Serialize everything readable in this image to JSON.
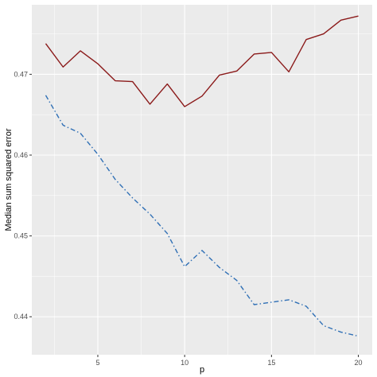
{
  "chart_data": {
    "type": "line",
    "title": "",
    "xlabel": "p",
    "ylabel": "Median sum squared error",
    "xlim": [
      1.2,
      20.8
    ],
    "ylim": [
      0.4353,
      0.4786
    ],
    "x_ticks": [
      5,
      10,
      15,
      20
    ],
    "x_tick_labels": [
      "5",
      "10",
      "15",
      "20"
    ],
    "y_ticks": [
      0.44,
      0.45,
      0.46,
      0.47
    ],
    "y_tick_labels": [
      "0.44",
      "0.45",
      "0.46",
      "0.47"
    ],
    "grid": true,
    "legend": "none",
    "x": [
      2,
      3,
      4,
      5,
      6,
      7,
      8,
      9,
      10,
      11,
      12,
      13,
      14,
      15,
      16,
      17,
      18,
      19,
      20
    ],
    "series": [
      {
        "color": "#8b1a1a",
        "style": "solid",
        "values": [
          0.4738,
          0.4709,
          0.4729,
          0.4713,
          0.4692,
          0.4691,
          0.4663,
          0.4688,
          0.466,
          0.4673,
          0.4699,
          0.4704,
          0.4725,
          0.4727,
          0.4703,
          0.4743,
          0.475,
          0.4767,
          0.4772
        ]
      },
      {
        "color": "#2f6fb5",
        "style": "dashdot",
        "values": [
          0.4674,
          0.4637,
          0.4627,
          0.4601,
          0.457,
          0.4547,
          0.4527,
          0.4503,
          0.4462,
          0.4482,
          0.4461,
          0.4445,
          0.4415,
          0.4418,
          0.4421,
          0.4413,
          0.4389,
          0.4381,
          0.4376
        ]
      }
    ]
  },
  "colors": {
    "panel_background": "#ebebeb",
    "gridline": "#ffffff",
    "tick_text": "#4d4d4d"
  }
}
